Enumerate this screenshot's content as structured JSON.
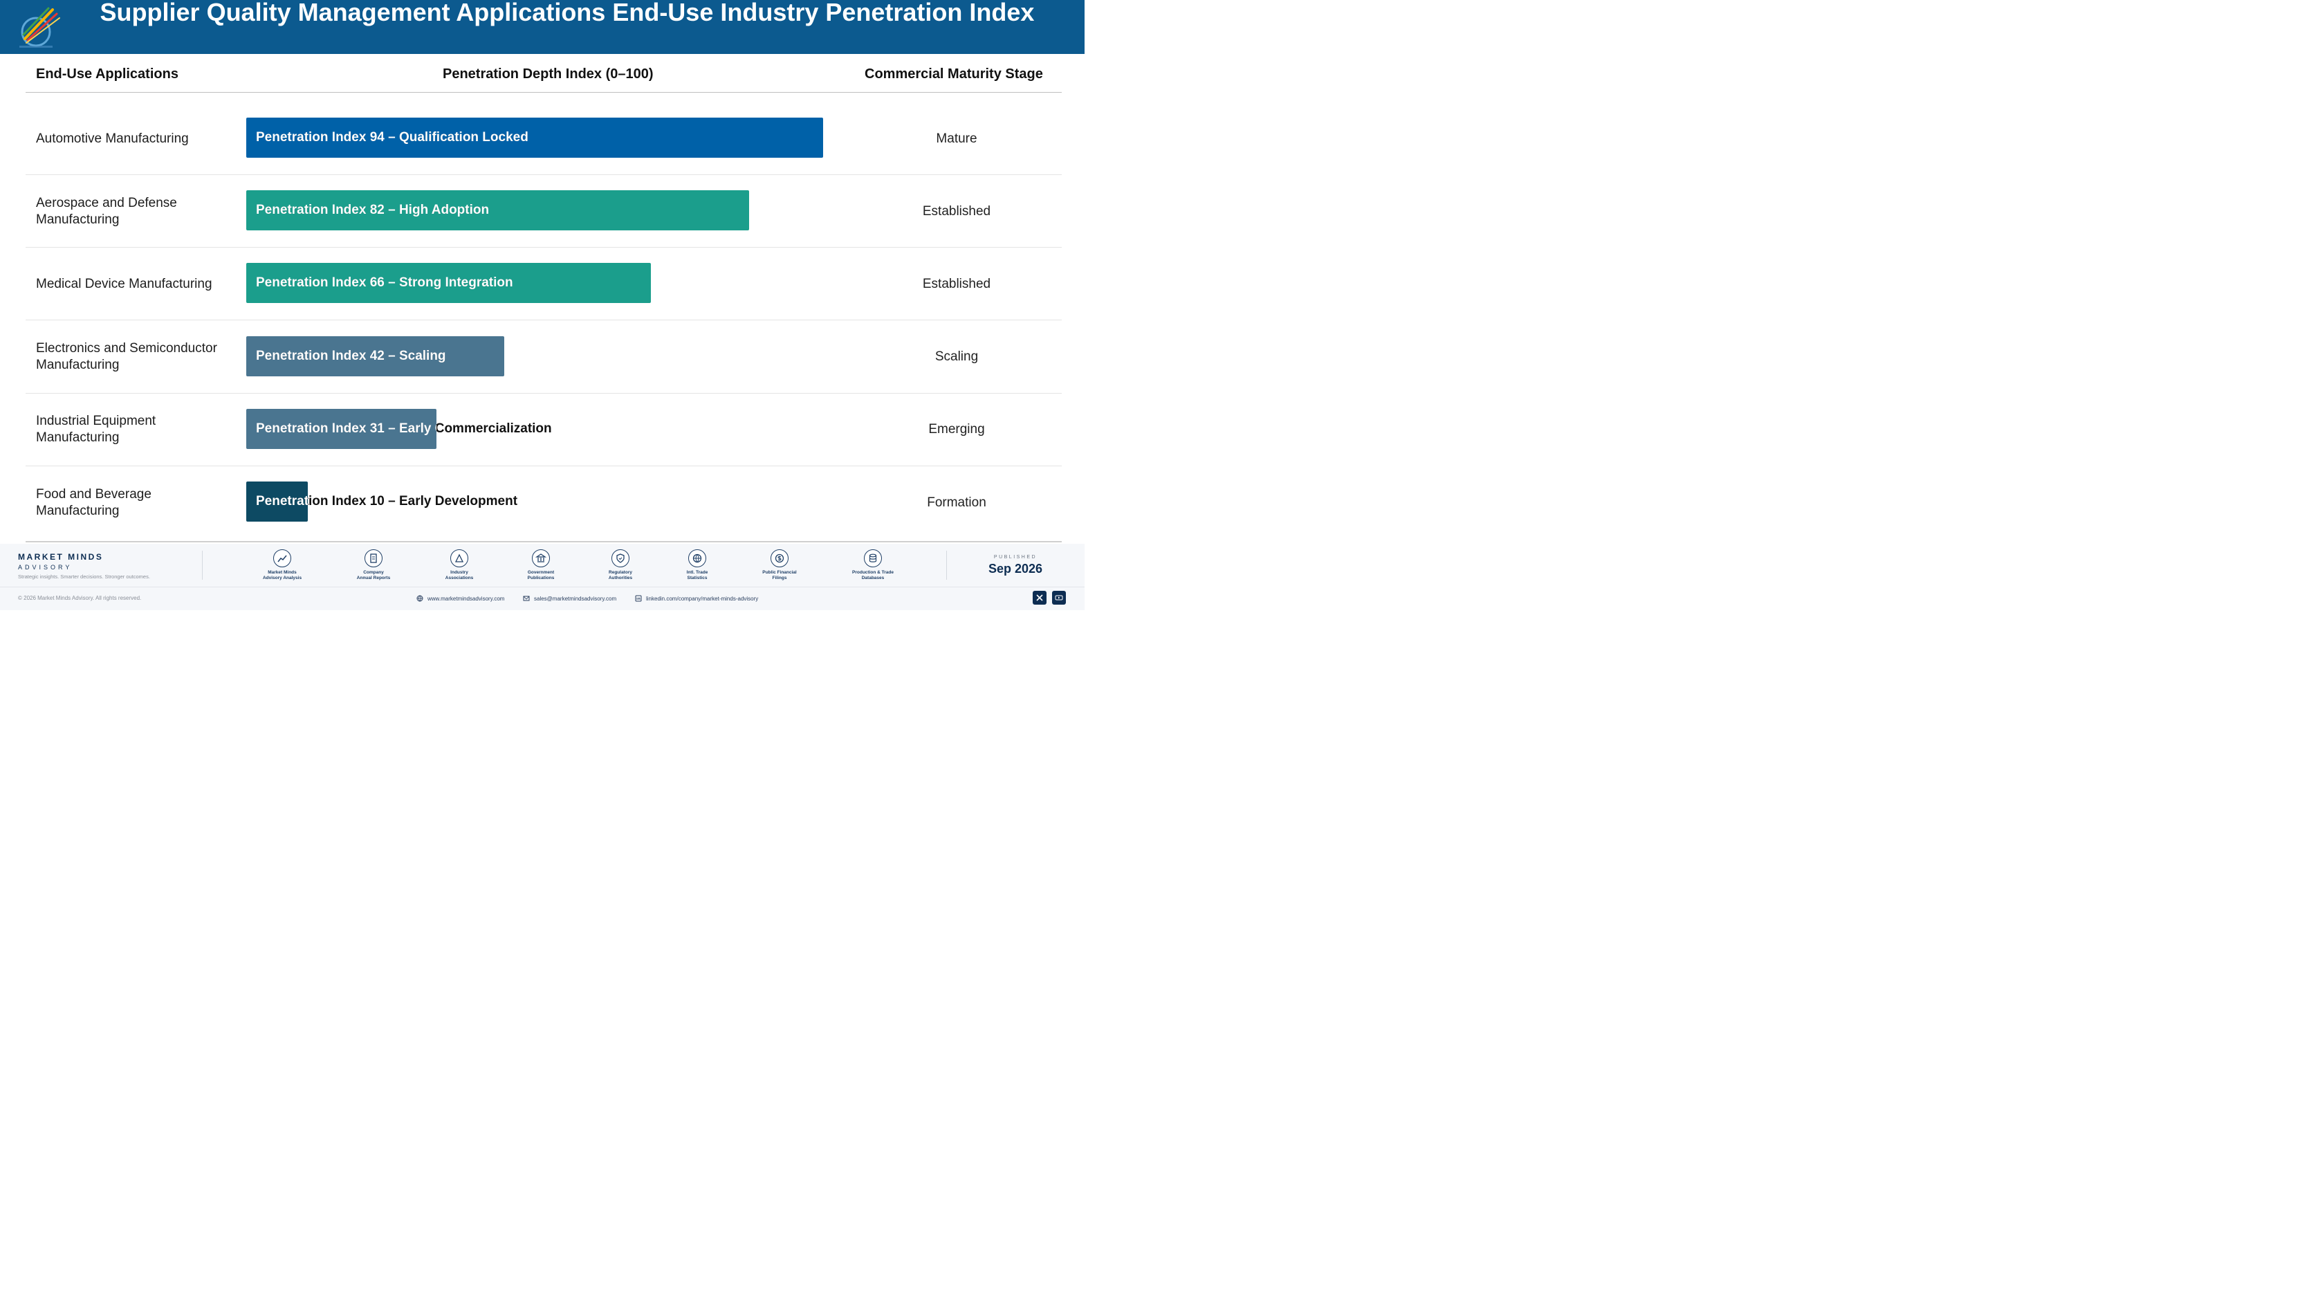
{
  "header": {
    "title": "Supplier Quality Management Applications End-Use Industry Penetration Index"
  },
  "columns": {
    "applications": "End-Use Applications",
    "index": "Penetration Depth Index (0–100)",
    "stage": "Commercial Maturity Stage"
  },
  "rows": [
    {
      "application": "Automotive Manufacturing",
      "index": 94,
      "bar_label": "Penetration Index 94 – Qualification Locked",
      "stage": "Mature",
      "color": "#0061a8"
    },
    {
      "application": "Aerospace and Defense Manufacturing",
      "index": 82,
      "bar_label": "Penetration Index 82 – High Adoption",
      "stage": "Established",
      "color": "#1b9e8c"
    },
    {
      "application": "Medical Device Manufacturing",
      "index": 66,
      "bar_label": "Penetration Index 66 – Strong Integration",
      "stage": "Established",
      "color": "#1b9e8c"
    },
    {
      "application": "Electronics and Semiconductor Manufacturing",
      "index": 42,
      "bar_label": "Penetration Index 42 – Scaling",
      "stage": "Scaling",
      "color": "#4a7590"
    },
    {
      "application": "Industrial Equipment Manufacturing",
      "index": 31,
      "bar_label": "Penetration Index 31 – Early Commercialization",
      "stage": "Emerging",
      "color": "#4a7590"
    },
    {
      "application": "Food and Beverage Manufacturing",
      "index": 10,
      "bar_label": "Penetration Index 10 – Early Development",
      "stage": "Formation",
      "color": "#0d4a63"
    }
  ],
  "footer": {
    "brand_name": "MARKET MINDS",
    "brand_sub": "ADVISORY",
    "tagline": "Strategic insights. Smarter decisions. Stronger outcomes.",
    "sources": [
      {
        "line1": "Market Minds",
        "line2": "Advisory Analysis",
        "icon": "chart-line-icon"
      },
      {
        "line1": "Company",
        "line2": "Annual Reports",
        "icon": "document-icon"
      },
      {
        "line1": "Industry",
        "line2": "Associations",
        "icon": "network-icon"
      },
      {
        "line1": "Government",
        "line2": "Publications",
        "icon": "government-building-icon"
      },
      {
        "line1": "Regulatory",
        "line2": "Authorities",
        "icon": "shield-check-icon"
      },
      {
        "line1": "Intl. Trade",
        "line2": "Statistics",
        "icon": "globe-icon"
      },
      {
        "line1": "Public Financial",
        "line2": "Filings",
        "icon": "dollar-coin-icon"
      },
      {
        "line1": "Production & Trade",
        "line2": "Databases",
        "icon": "database-icon"
      }
    ],
    "published_label": "PUBLISHED",
    "published_date": "Sep 2026",
    "copyright": "© 2026 Market Minds Advisory. All rights reserved.",
    "website": "www.marketmindsadvisory.com",
    "email": "sales@marketmindsadvisory.com",
    "linkedin": "linkedin.com/company/market-minds-advisory"
  }
}
